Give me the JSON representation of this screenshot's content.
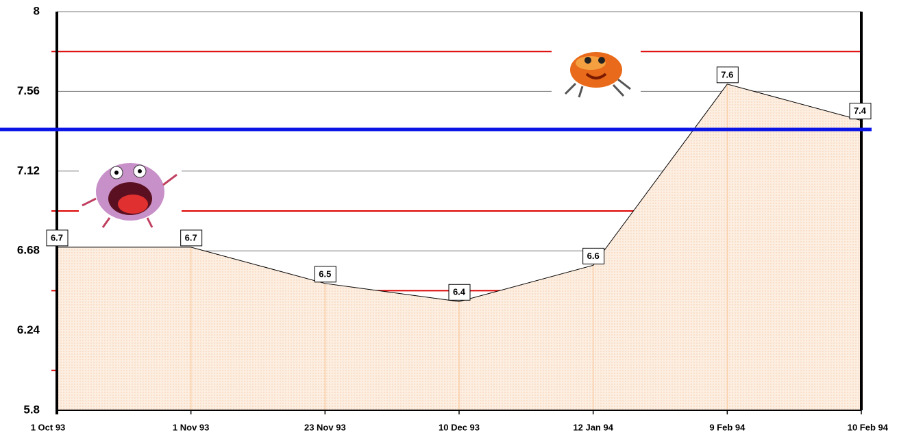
{
  "chart_data": {
    "type": "area-line",
    "categories": [
      "1 Oct 93",
      "1 Nov 93",
      "23 Nov 93",
      "10 Dec 93",
      "12 Jan 94",
      "9 Feb 94",
      "10 Feb 94"
    ],
    "values": [
      6.7,
      6.7,
      6.5,
      6.4,
      6.6,
      7.6,
      7.4
    ],
    "color": "#000000",
    "fill_color": "#fde6d4",
    "drop_line_color": "#f9cfa8",
    "ylim": [
      5.8,
      8
    ],
    "yticks": [
      5.8,
      6.24,
      6.68,
      7.12,
      7.56,
      8
    ],
    "grid": true,
    "grid_color": "#777777",
    "minor_yticks": [
      6.02,
      6.46,
      6.9,
      7.78
    ],
    "minor_grid_color": "#dd0000",
    "threshold": 7.35,
    "threshold_color": "#0a14e6"
  }
}
